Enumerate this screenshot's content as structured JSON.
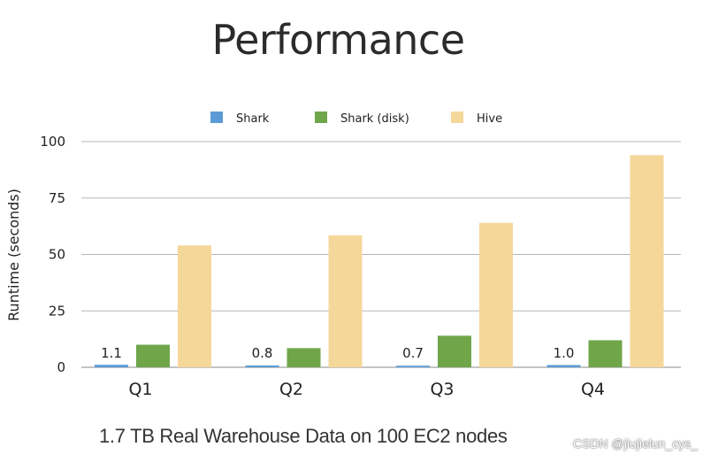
{
  "chart_data": {
    "type": "bar",
    "title": "Performance",
    "xlabel": "",
    "ylabel": "Runtime (seconds)",
    "ylim": [
      0,
      100
    ],
    "yticks": [
      0,
      25,
      50,
      75,
      100
    ],
    "grid": true,
    "legend_position": "top",
    "categories": [
      "Q1",
      "Q2",
      "Q3",
      "Q4"
    ],
    "series": [
      {
        "name": "Shark",
        "color": "#5b9bd5",
        "values": [
          1.1,
          0.8,
          0.7,
          1.0
        ],
        "labels": [
          "1.1",
          "0.8",
          "0.7",
          "1.0"
        ]
      },
      {
        "name": "Shark (disk)",
        "color": "#6fa64a",
        "values": [
          10,
          8.5,
          14,
          12
        ]
      },
      {
        "name": "Hive",
        "color": "#f6d79a",
        "values": [
          54,
          58.5,
          64,
          94
        ]
      }
    ],
    "caption": "1.7 TB Real Warehouse Data on 100 EC2 nodes"
  },
  "watermark": "CSDN @jiujielun_cys_"
}
